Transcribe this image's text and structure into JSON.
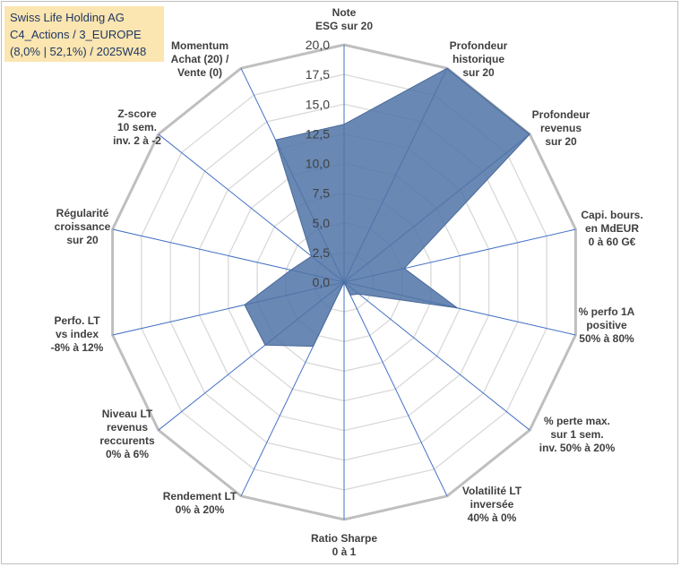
{
  "title_lines": [
    "Swiss Life Holding AG",
    "C4_Actions / 3_EUROPE",
    "(8,0% | 52,1%) / 2025W48"
  ],
  "colors": {
    "series_fill": "#4f73a6",
    "series_stroke": "#4a6a9a",
    "grid": "#d9d9d9",
    "outer_grid": "#bfbfbf",
    "spoke": "#4472c4",
    "title_bg": "#fbe5b0",
    "title_text": "#1f3864"
  },
  "chart_data": {
    "type": "radar",
    "r_min": 0,
    "r_max": 20,
    "r_step": 2.5,
    "tick_labels": [
      "0,0",
      "2,5",
      "5,0",
      "7,5",
      "10,0",
      "12,5",
      "15,0",
      "17,5",
      "20,0"
    ],
    "grid": true,
    "axes": [
      [
        "Note",
        "ESG sur 20"
      ],
      [
        "Profondeur",
        "historique",
        "sur 20"
      ],
      [
        "Profondeur",
        "revenus",
        "sur 20"
      ],
      [
        "Capi. bours.",
        "en MdEUR",
        "0 à 60 G€"
      ],
      [
        "% perfo 1A",
        "positive",
        "50% à 80%"
      ],
      [
        "% perte max.",
        "sur 1 sem.",
        "inv. 50% à 20%"
      ],
      [
        "Volatilité LT",
        "inversée",
        "40% à 0%"
      ],
      [
        "Ratio Sharpe",
        "0 à 1"
      ],
      [
        "Rendement LT",
        "0% à 20%"
      ],
      [
        "Niveau LT",
        "revenus",
        "reccurents",
        "0% à 6%"
      ],
      [
        "Perfo. LT",
        "vs index",
        "-8% à 12%"
      ],
      [
        "Régularité",
        "croissance",
        "sur 20"
      ],
      [
        "Z-score",
        "10 sem.",
        "inv. 2 à -2"
      ],
      [
        "Momentum",
        "Achat (20) /",
        "Vente (0)"
      ]
    ],
    "series": [
      {
        "values": [
          13.3,
          20,
          20,
          5.2,
          9.8,
          1.6,
          1.2,
          0,
          6,
          8.5,
          8.6,
          4.6,
          3.5,
          13.3
        ]
      }
    ]
  }
}
